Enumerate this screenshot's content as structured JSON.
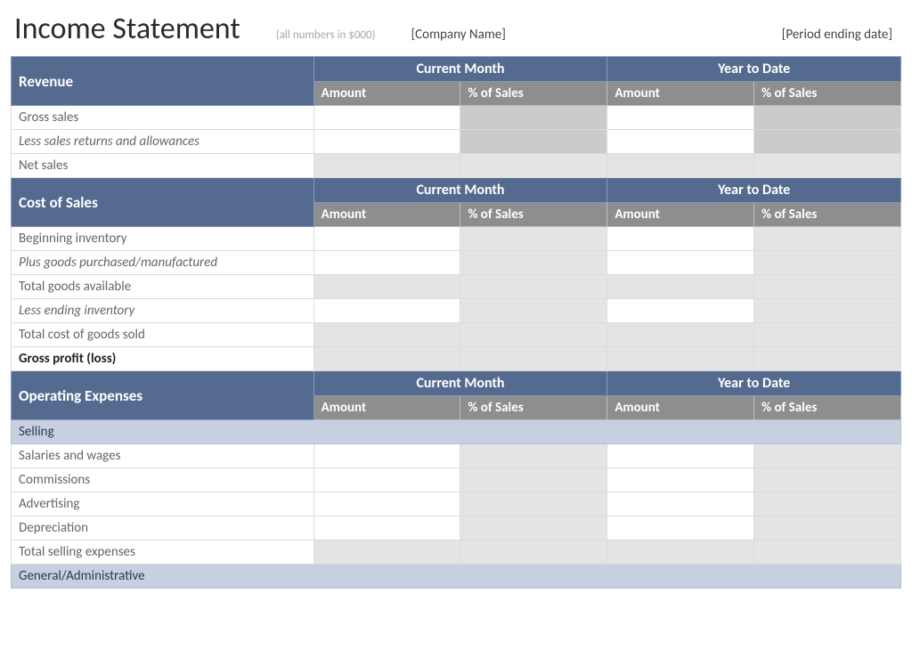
{
  "header": {
    "title": "Income Statement",
    "subtitle": "(all numbers in $000)",
    "company": "[Company Name]",
    "period": "[Period ending date]"
  },
  "col_headers": {
    "current_month": "Current Month",
    "year_to_date": "Year to Date",
    "amount": "Amount",
    "pct_sales": "% of Sales"
  },
  "sections": {
    "revenue": {
      "title": "Revenue",
      "rows": [
        {
          "label": "Gross sales",
          "italic": false,
          "bold": false,
          "inputs": [
            "white",
            "hatch",
            "white",
            "hatch"
          ]
        },
        {
          "label": "Less sales returns and allowances",
          "italic": true,
          "bold": false,
          "inputs": [
            "white",
            "hatch",
            "white",
            "hatch"
          ]
        },
        {
          "label": "Net sales",
          "italic": false,
          "bold": false,
          "inputs": [
            "gray",
            "gray",
            "gray",
            "gray"
          ]
        }
      ]
    },
    "cost_of_sales": {
      "title": "Cost of Sales",
      "rows": [
        {
          "label": "Beginning inventory",
          "italic": false,
          "bold": false,
          "inputs": [
            "white",
            "gray",
            "white",
            "gray"
          ]
        },
        {
          "label": "Plus goods purchased/manufactured",
          "italic": true,
          "bold": false,
          "inputs": [
            "white",
            "gray",
            "white",
            "gray"
          ]
        },
        {
          "label": "Total goods available",
          "italic": false,
          "bold": false,
          "inputs": [
            "gray",
            "gray",
            "gray",
            "gray"
          ]
        },
        {
          "label": "Less ending inventory",
          "italic": true,
          "bold": false,
          "inputs": [
            "white",
            "gray",
            "white",
            "gray"
          ]
        },
        {
          "label": "Total cost of goods sold",
          "italic": false,
          "bold": false,
          "inputs": [
            "gray",
            "gray",
            "gray",
            "gray"
          ]
        },
        {
          "label": "Gross profit (loss)",
          "italic": false,
          "bold": true,
          "inputs": [
            "gray",
            "gray",
            "gray",
            "gray"
          ]
        }
      ]
    },
    "operating_expenses": {
      "title": "Operating Expenses",
      "categories": [
        {
          "name": "Selling",
          "rows": [
            {
              "label": "Salaries and wages",
              "italic": false,
              "bold": false,
              "inputs": [
                "white",
                "gray",
                "white",
                "gray"
              ]
            },
            {
              "label": "Commissions",
              "italic": false,
              "bold": false,
              "inputs": [
                "white",
                "gray",
                "white",
                "gray"
              ]
            },
            {
              "label": "Advertising",
              "italic": false,
              "bold": false,
              "inputs": [
                "white",
                "gray",
                "white",
                "gray"
              ]
            },
            {
              "label": "Depreciation",
              "italic": false,
              "bold": false,
              "inputs": [
                "white",
                "gray",
                "white",
                "gray"
              ]
            },
            {
              "label": "Total selling expenses",
              "italic": false,
              "bold": false,
              "inputs": [
                "gray",
                "gray",
                "gray",
                "gray"
              ]
            }
          ]
        },
        {
          "name": "General/Administrative",
          "rows": []
        }
      ]
    }
  },
  "colors": {
    "section_header_bg": "#556a8f",
    "sub_header_bg": "#8e8e8e",
    "category_band_bg": "#c8cfe0",
    "gray_cell_bg": "#e4e4e4",
    "hatch_cell_bg": "#cbcbcb",
    "border": "#dcdcdc",
    "label_text": "#666666"
  }
}
